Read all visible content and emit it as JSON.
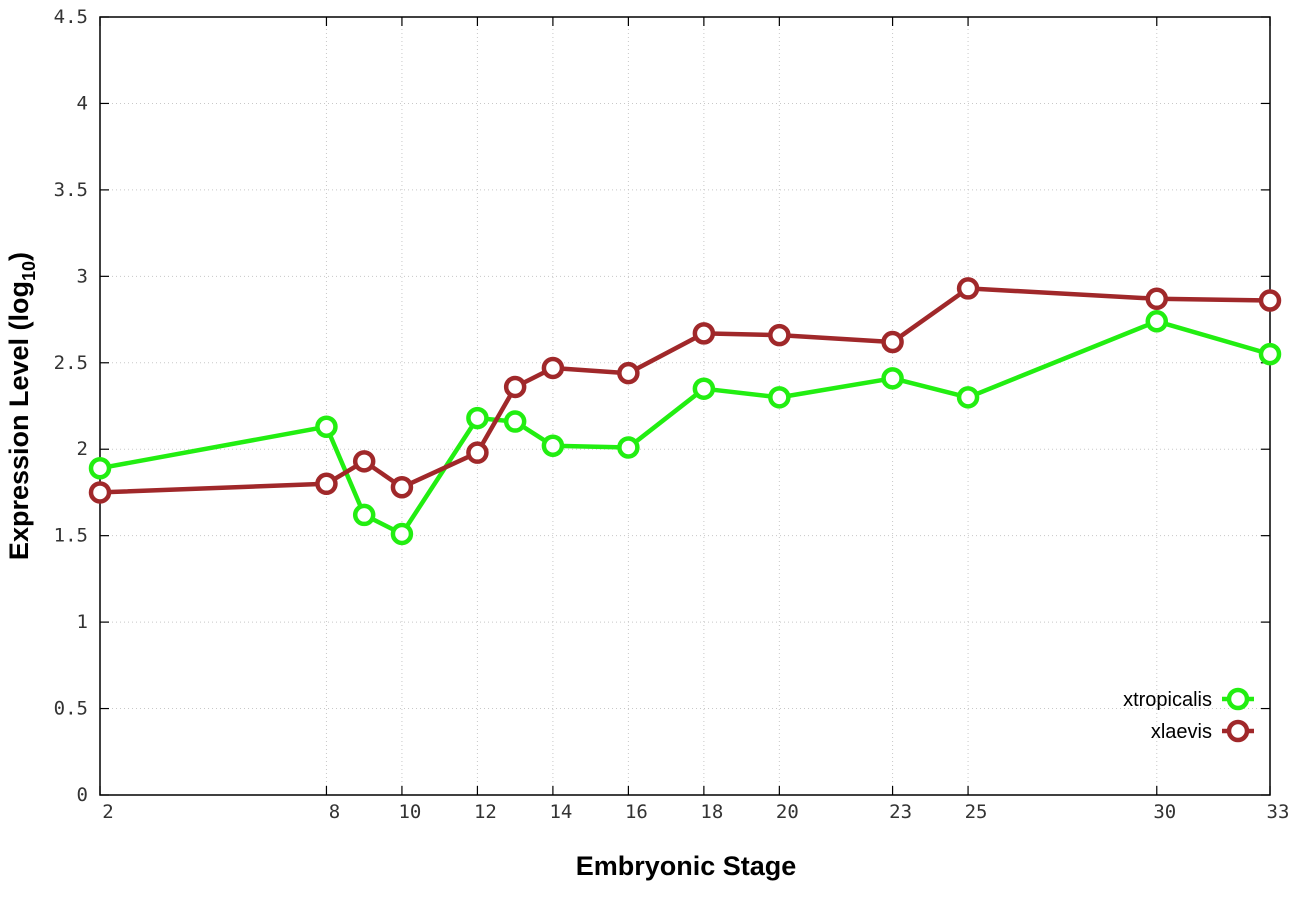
{
  "chart_data": {
    "type": "line",
    "xlabel": "Embryonic Stage",
    "ylabel_main": "Expression Level (log",
    "ylabel_sub": "10",
    "ylabel_end": ")",
    "xlim": [
      2,
      33
    ],
    "ylim": [
      0,
      4.5
    ],
    "xticks": [
      2,
      8,
      10,
      12,
      14,
      16,
      18,
      20,
      23,
      25,
      30,
      33
    ],
    "yticks": [
      0,
      0.5,
      1,
      1.5,
      2,
      2.5,
      3,
      3.5,
      4,
      4.5
    ],
    "ytick_labels": [
      "0",
      "0.5",
      "1",
      "1.5",
      "2",
      "2.5",
      "3",
      "3.5",
      "4",
      "4.5"
    ],
    "grid": true,
    "legend_position": "bottom-right",
    "x": [
      2,
      8,
      9,
      10,
      12,
      13,
      14,
      16,
      18,
      20,
      23,
      25,
      30,
      33
    ],
    "series": [
      {
        "name": "xtropicalis",
        "color": "#22ee11",
        "values": [
          1.89,
          2.13,
          1.62,
          1.51,
          2.18,
          2.16,
          2.02,
          2.01,
          2.35,
          2.3,
          2.41,
          2.3,
          2.74,
          2.55
        ]
      },
      {
        "name": "xlaevis",
        "color": "#a0282a",
        "values": [
          1.75,
          1.8,
          1.93,
          1.78,
          1.98,
          2.36,
          2.47,
          2.44,
          2.67,
          2.66,
          2.62,
          2.93,
          2.87,
          2.86
        ]
      }
    ]
  }
}
